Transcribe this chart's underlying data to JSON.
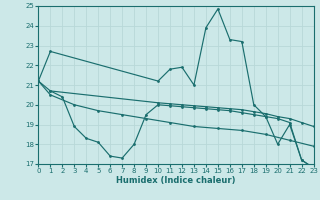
{
  "xlabel": "Humidex (Indice chaleur)",
  "background_color": "#cce8e8",
  "grid_color": "#b8d8d8",
  "line_color": "#1a6e6e",
  "xlim": [
    0,
    23
  ],
  "ylim": [
    17,
    25
  ],
  "xticks": [
    0,
    1,
    2,
    3,
    4,
    5,
    6,
    7,
    8,
    9,
    10,
    11,
    12,
    13,
    14,
    15,
    16,
    17,
    18,
    19,
    20,
    21,
    22,
    23
  ],
  "yticks": [
    17,
    18,
    19,
    20,
    21,
    22,
    23,
    24,
    25
  ],
  "lines": [
    {
      "x": [
        0,
        1,
        10,
        11,
        12,
        13,
        14,
        15,
        16,
        17,
        18,
        19,
        20,
        21,
        22,
        23
      ],
      "y": [
        21.2,
        22.7,
        21.2,
        21.8,
        21.9,
        21.0,
        23.9,
        24.85,
        23.3,
        23.2,
        20.0,
        19.4,
        18.0,
        19.0,
        17.2,
        16.8
      ]
    },
    {
      "x": [
        0,
        1,
        10,
        11,
        12,
        13,
        14,
        15,
        16,
        17,
        18,
        19,
        20,
        21,
        22,
        23
      ],
      "y": [
        21.2,
        20.7,
        20.1,
        20.05,
        20.0,
        19.95,
        19.9,
        19.85,
        19.8,
        19.75,
        19.65,
        19.55,
        19.4,
        19.3,
        19.1,
        18.9
      ]
    },
    {
      "x": [
        0,
        1,
        3,
        5,
        7,
        9,
        11,
        13,
        15,
        17,
        19,
        21,
        23
      ],
      "y": [
        21.2,
        20.5,
        20.0,
        19.7,
        19.5,
        19.3,
        19.1,
        18.9,
        18.8,
        18.7,
        18.5,
        18.2,
        17.9
      ]
    },
    {
      "x": [
        1,
        2,
        3,
        4,
        5,
        6,
        7,
        8,
        9,
        10,
        11,
        12,
        13,
        14,
        15,
        16,
        17,
        18,
        19,
        20,
        21,
        22,
        23
      ],
      "y": [
        20.7,
        20.4,
        18.9,
        18.3,
        18.1,
        17.4,
        17.3,
        18.0,
        19.5,
        20.0,
        19.95,
        19.9,
        19.85,
        19.8,
        19.75,
        19.7,
        19.6,
        19.5,
        19.4,
        19.3,
        19.1,
        17.2,
        16.8
      ]
    }
  ]
}
